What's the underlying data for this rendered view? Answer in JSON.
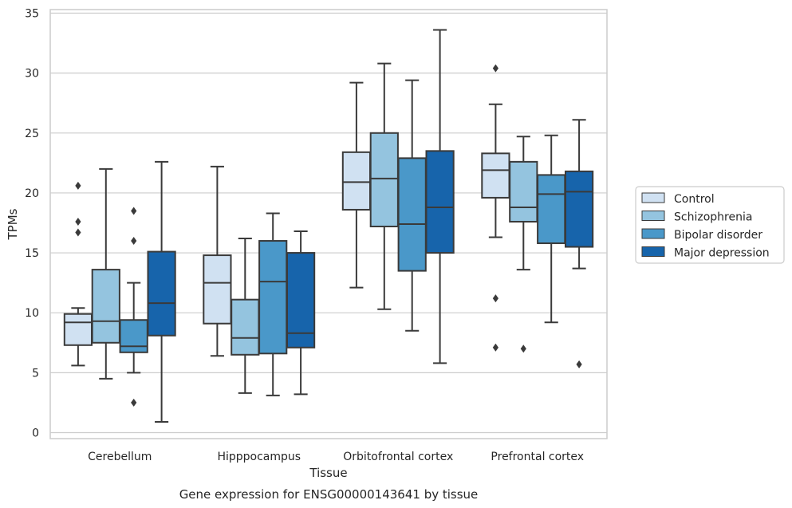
{
  "chart_data": {
    "type": "box",
    "xlabel": "Tissue",
    "ylabel": "TPMs",
    "caption": "Gene expression for ENSG00000143641 by tissue",
    "ylim": [
      -0.5,
      35.3
    ],
    "yticks": [
      0,
      5,
      10,
      15,
      20,
      25,
      30,
      35
    ],
    "grid": "horizontal",
    "legend_position": "right",
    "categories": [
      "Cerebellum",
      "Hipppocampus",
      "Orbitofrontal cortex",
      "Prefrontal cortex"
    ],
    "series": [
      {
        "name": "Control",
        "color": "#d0e1f2",
        "boxes": [
          {
            "whisker_low": 5.6,
            "q1": 7.3,
            "median": 9.2,
            "q3": 9.9,
            "whisker_high": 10.4,
            "outliers": [
              20.6,
              17.6,
              16.7
            ]
          },
          {
            "whisker_low": 6.4,
            "q1": 9.1,
            "median": 12.5,
            "q3": 14.8,
            "whisker_high": 22.2,
            "outliers": []
          },
          {
            "whisker_low": 12.1,
            "q1": 18.6,
            "median": 20.9,
            "q3": 23.4,
            "whisker_high": 29.2,
            "outliers": []
          },
          {
            "whisker_low": 16.3,
            "q1": 19.6,
            "median": 21.9,
            "q3": 23.3,
            "whisker_high": 27.4,
            "outliers": [
              30.4,
              11.2,
              7.1
            ]
          }
        ]
      },
      {
        "name": "Schizophrenia",
        "color": "#94c4df",
        "boxes": [
          {
            "whisker_low": 4.5,
            "q1": 7.5,
            "median": 9.3,
            "q3": 13.6,
            "whisker_high": 22.0,
            "outliers": []
          },
          {
            "whisker_low": 3.3,
            "q1": 6.5,
            "median": 7.9,
            "q3": 11.1,
            "whisker_high": 16.2,
            "outliers": []
          },
          {
            "whisker_low": 10.3,
            "q1": 17.2,
            "median": 21.2,
            "q3": 25.0,
            "whisker_high": 30.8,
            "outliers": []
          },
          {
            "whisker_low": 13.6,
            "q1": 17.6,
            "median": 18.8,
            "q3": 22.6,
            "whisker_high": 24.7,
            "outliers": [
              7.0
            ]
          }
        ]
      },
      {
        "name": "Bipolar disorder",
        "color": "#4a98c9",
        "boxes": [
          {
            "whisker_low": 5.0,
            "q1": 6.7,
            "median": 7.2,
            "q3": 9.4,
            "whisker_high": 12.5,
            "outliers": [
              18.5,
              16.0,
              2.5
            ]
          },
          {
            "whisker_low": 3.1,
            "q1": 6.6,
            "median": 12.6,
            "q3": 16.0,
            "whisker_high": 18.3,
            "outliers": []
          },
          {
            "whisker_low": 8.5,
            "q1": 13.5,
            "median": 17.4,
            "q3": 22.9,
            "whisker_high": 29.4,
            "outliers": []
          },
          {
            "whisker_low": 9.2,
            "q1": 15.8,
            "median": 19.9,
            "q3": 21.5,
            "whisker_high": 24.8,
            "outliers": []
          }
        ]
      },
      {
        "name": "Major depression",
        "color": "#1764ab",
        "boxes": [
          {
            "whisker_low": 0.9,
            "q1": 8.1,
            "median": 10.8,
            "q3": 15.1,
            "whisker_high": 22.6,
            "outliers": []
          },
          {
            "whisker_low": 3.2,
            "q1": 7.1,
            "median": 8.3,
            "q3": 15.0,
            "whisker_high": 16.8,
            "outliers": []
          },
          {
            "whisker_low": 5.8,
            "q1": 15.0,
            "median": 18.8,
            "q3": 23.5,
            "whisker_high": 33.6,
            "outliers": []
          },
          {
            "whisker_low": 13.7,
            "q1": 15.5,
            "median": 20.1,
            "q3": 21.8,
            "whisker_high": 26.1,
            "outliers": [
              5.7
            ]
          }
        ]
      }
    ]
  }
}
